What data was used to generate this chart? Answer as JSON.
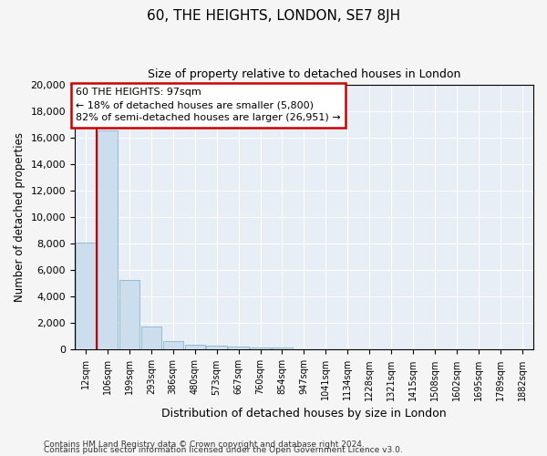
{
  "title": "60, THE HEIGHTS, LONDON, SE7 8JH",
  "subtitle": "Size of property relative to detached houses in London",
  "xlabel": "Distribution of detached houses by size in London",
  "ylabel": "Number of detached properties",
  "bar_labels": [
    "12sqm",
    "106sqm",
    "199sqm",
    "293sqm",
    "386sqm",
    "480sqm",
    "573sqm",
    "667sqm",
    "760sqm",
    "854sqm",
    "947sqm",
    "1041sqm",
    "1134sqm",
    "1228sqm",
    "1321sqm",
    "1415sqm",
    "1508sqm",
    "1602sqm",
    "1695sqm",
    "1789sqm",
    "1882sqm"
  ],
  "bar_values": [
    8100,
    16600,
    5300,
    1750,
    650,
    350,
    280,
    230,
    200,
    180,
    0,
    0,
    0,
    0,
    0,
    0,
    0,
    0,
    0,
    0,
    0
  ],
  "bar_color": "#ccdded",
  "bar_edge_color": "#8ab4cc",
  "vline_x_bar_index": 1,
  "annotation_line1": "60 THE HEIGHTS: 97sqm",
  "annotation_line2": "← 18% of detached houses are smaller (5,800)",
  "annotation_line3": "82% of semi-detached houses are larger (26,951) →",
  "annotation_box_facecolor": "#ffffff",
  "annotation_box_edgecolor": "#cc0000",
  "vline_color": "#cc0000",
  "ylim": [
    0,
    20000
  ],
  "yticks": [
    0,
    2000,
    4000,
    6000,
    8000,
    10000,
    12000,
    14000,
    16000,
    18000,
    20000
  ],
  "footnote1": "Contains HM Land Registry data © Crown copyright and database right 2024.",
  "footnote2": "Contains public sector information licensed under the Open Government Licence v3.0.",
  "fig_facecolor": "#f5f5f5",
  "plot_facecolor": "#e8eef5",
  "grid_color": "#ffffff"
}
